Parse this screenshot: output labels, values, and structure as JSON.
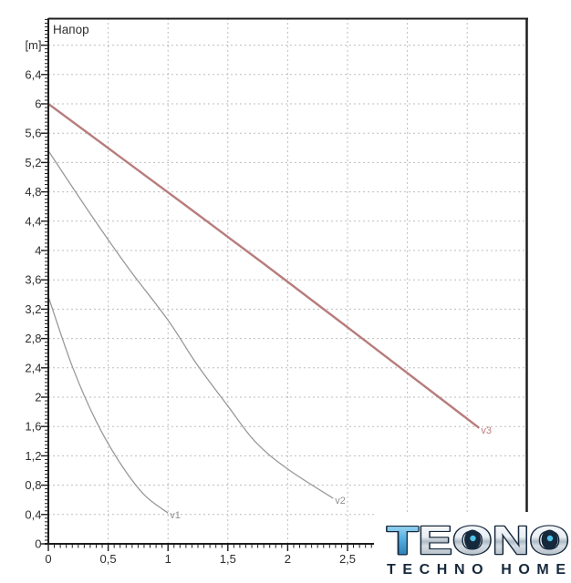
{
  "chart_data": {
    "type": "line",
    "title": "Напор",
    "y_unit_label": "[m]",
    "background": "#ffffff",
    "colors": {
      "frame": "#1d1d1d",
      "grid": "#bdbdbd",
      "tick_label": "#2e2e2e",
      "title": "#2e2e2e"
    },
    "x_axis": {
      "min": 0,
      "max": 4.0,
      "minor_tick_step": 0.05,
      "minor_tick_max": 2.75,
      "grid_step": 0.5,
      "grid_min": 0.5,
      "grid_max": 3.5,
      "ticks_major": [
        {
          "v": 0,
          "label": "0"
        },
        {
          "v": 0.5,
          "label": "0,5"
        },
        {
          "v": 1,
          "label": "1"
        },
        {
          "v": 1.5,
          "label": "1,5"
        },
        {
          "v": 2,
          "label": "2"
        },
        {
          "v": 2.5,
          "label": "2,5"
        }
      ]
    },
    "y_axis": {
      "min": 0,
      "max": 7.17,
      "minor_tick_step": 0.05,
      "minor_tick_max": 7.15,
      "grid_step": 0.4,
      "grid_min": 0.4,
      "grid_max": 6.8,
      "unit_label_v": 6.8,
      "ticks_major": [
        {
          "v": 0,
          "label": "0"
        },
        {
          "v": 0.4,
          "label": "0,4"
        },
        {
          "v": 0.8,
          "label": "0,8"
        },
        {
          "v": 1.2,
          "label": "1,2"
        },
        {
          "v": 1.6,
          "label": "1,6"
        },
        {
          "v": 2,
          "label": "2"
        },
        {
          "v": 2.4,
          "label": "2,4"
        },
        {
          "v": 2.8,
          "label": "2,8"
        },
        {
          "v": 3.2,
          "label": "3,2"
        },
        {
          "v": 3.6,
          "label": "3,6"
        },
        {
          "v": 4,
          "label": "4"
        },
        {
          "v": 4.4,
          "label": "4,4"
        },
        {
          "v": 4.8,
          "label": "4,8"
        },
        {
          "v": 5.2,
          "label": "5,2"
        },
        {
          "v": 5.6,
          "label": "5,6"
        },
        {
          "v": 6,
          "label": "6"
        },
        {
          "v": 6.4,
          "label": "6,4"
        },
        {
          "v": 6.8,
          "label": ""
        }
      ]
    },
    "series": [
      {
        "name": "v1",
        "color": "#999999",
        "label_color": "#8f8f8f",
        "width": 1.3,
        "points": [
          [
            0,
            3.37
          ],
          [
            0.2,
            2.42
          ],
          [
            0.4,
            1.67
          ],
          [
            0.6,
            1.1
          ],
          [
            0.8,
            0.67
          ],
          [
            1.0,
            0.42
          ]
        ]
      },
      {
        "name": "v2",
        "color": "#999999",
        "label_color": "#8f8f8f",
        "width": 1.3,
        "points": [
          [
            0,
            5.36
          ],
          [
            0.33,
            4.55
          ],
          [
            0.66,
            3.78
          ],
          [
            1.0,
            3.05
          ],
          [
            1.24,
            2.45
          ],
          [
            1.5,
            1.88
          ],
          [
            1.73,
            1.39
          ],
          [
            2.0,
            1.02
          ],
          [
            2.38,
            0.62
          ]
        ]
      },
      {
        "name": "v3",
        "color": "#b87c7c",
        "label_color": "#bb7b7b",
        "width": 2.4,
        "points": [
          [
            0,
            6.0
          ],
          [
            1.8,
            3.82
          ],
          [
            3.6,
            1.58
          ]
        ]
      }
    ],
    "legend_position": "curve-end-labels",
    "grid_on": true
  },
  "logo": {
    "title": "TEONO",
    "t_letter": "T",
    "subtitle": "TECHNO HOME",
    "navy": "#16293c",
    "chrome_light": "#fdfeff",
    "chrome_dark": "#97a5b2",
    "blue": "#4fc3e8"
  }
}
